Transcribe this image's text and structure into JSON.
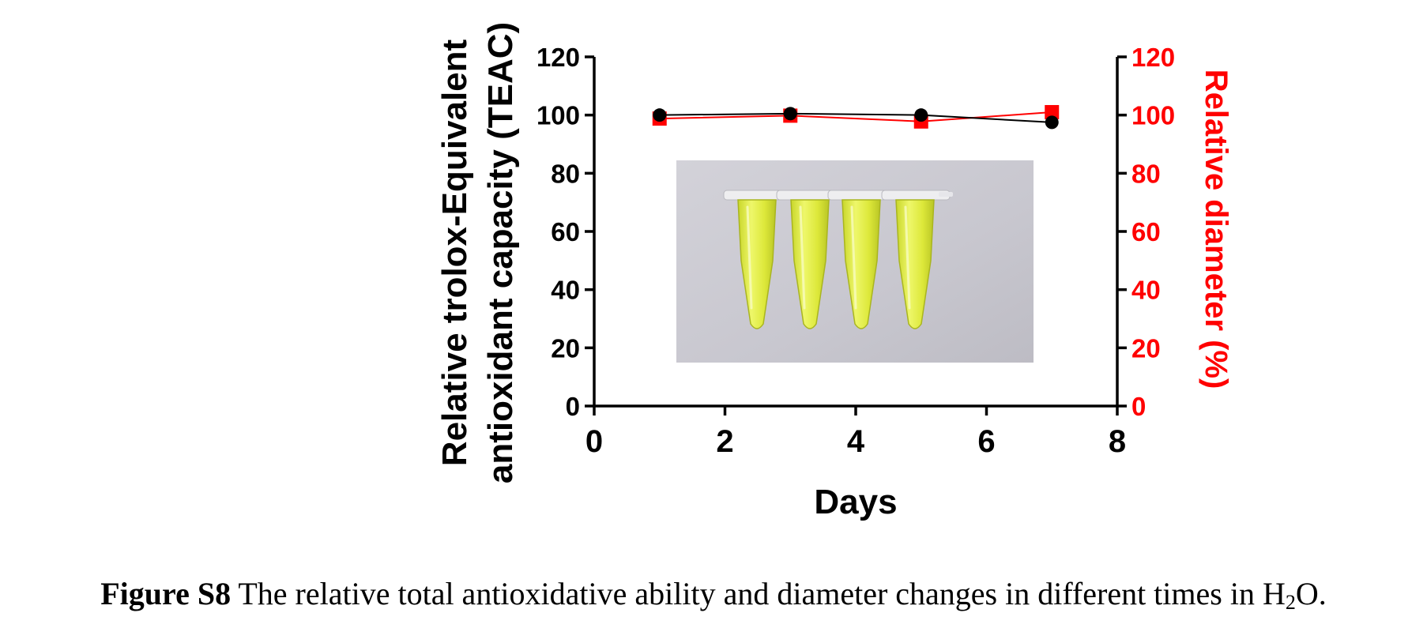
{
  "chart_data": {
    "type": "line",
    "xlabel": "Days",
    "ylabel_lines": [
      "Relative trolox-Equivalent",
      "antioxidant capacity (TEAC)"
    ],
    "y2label": "Relative diameter (%)",
    "xlim": [
      0,
      8
    ],
    "ylim": [
      0,
      120
    ],
    "y2lim": [
      0,
      120
    ],
    "xticks": [
      0,
      2,
      4,
      6,
      8
    ],
    "yticks": [
      0,
      20,
      40,
      60,
      80,
      100,
      120
    ],
    "y2ticks": [
      0,
      20,
      40,
      60,
      80,
      100,
      120
    ],
    "grid": false,
    "series": [
      {
        "axis": "left",
        "color": "#000000",
        "marker": "circle",
        "x": [
          1,
          3,
          5,
          7
        ],
        "values": [
          100,
          100.5,
          100,
          97.5
        ]
      },
      {
        "axis": "right",
        "color": "#ff0000",
        "marker": "square",
        "x": [
          1,
          3,
          5,
          7
        ],
        "values": [
          98.8,
          99.8,
          97.8,
          101
        ]
      }
    ],
    "inset_photo": {
      "description": "photo-of-four-yellow-tubes",
      "tube_count": 4
    }
  },
  "caption": {
    "label": "Figure S8",
    "text_before_sub": " The relative total antioxidative ability and diameter changes in different times in H",
    "sub": "2",
    "text_after_sub": "O."
  },
  "colors": {
    "left_axis": "#000000",
    "right_axis": "#ff0000",
    "photo_bg": "#c9c8d0",
    "tube_liquid": "#e3ef3a"
  }
}
